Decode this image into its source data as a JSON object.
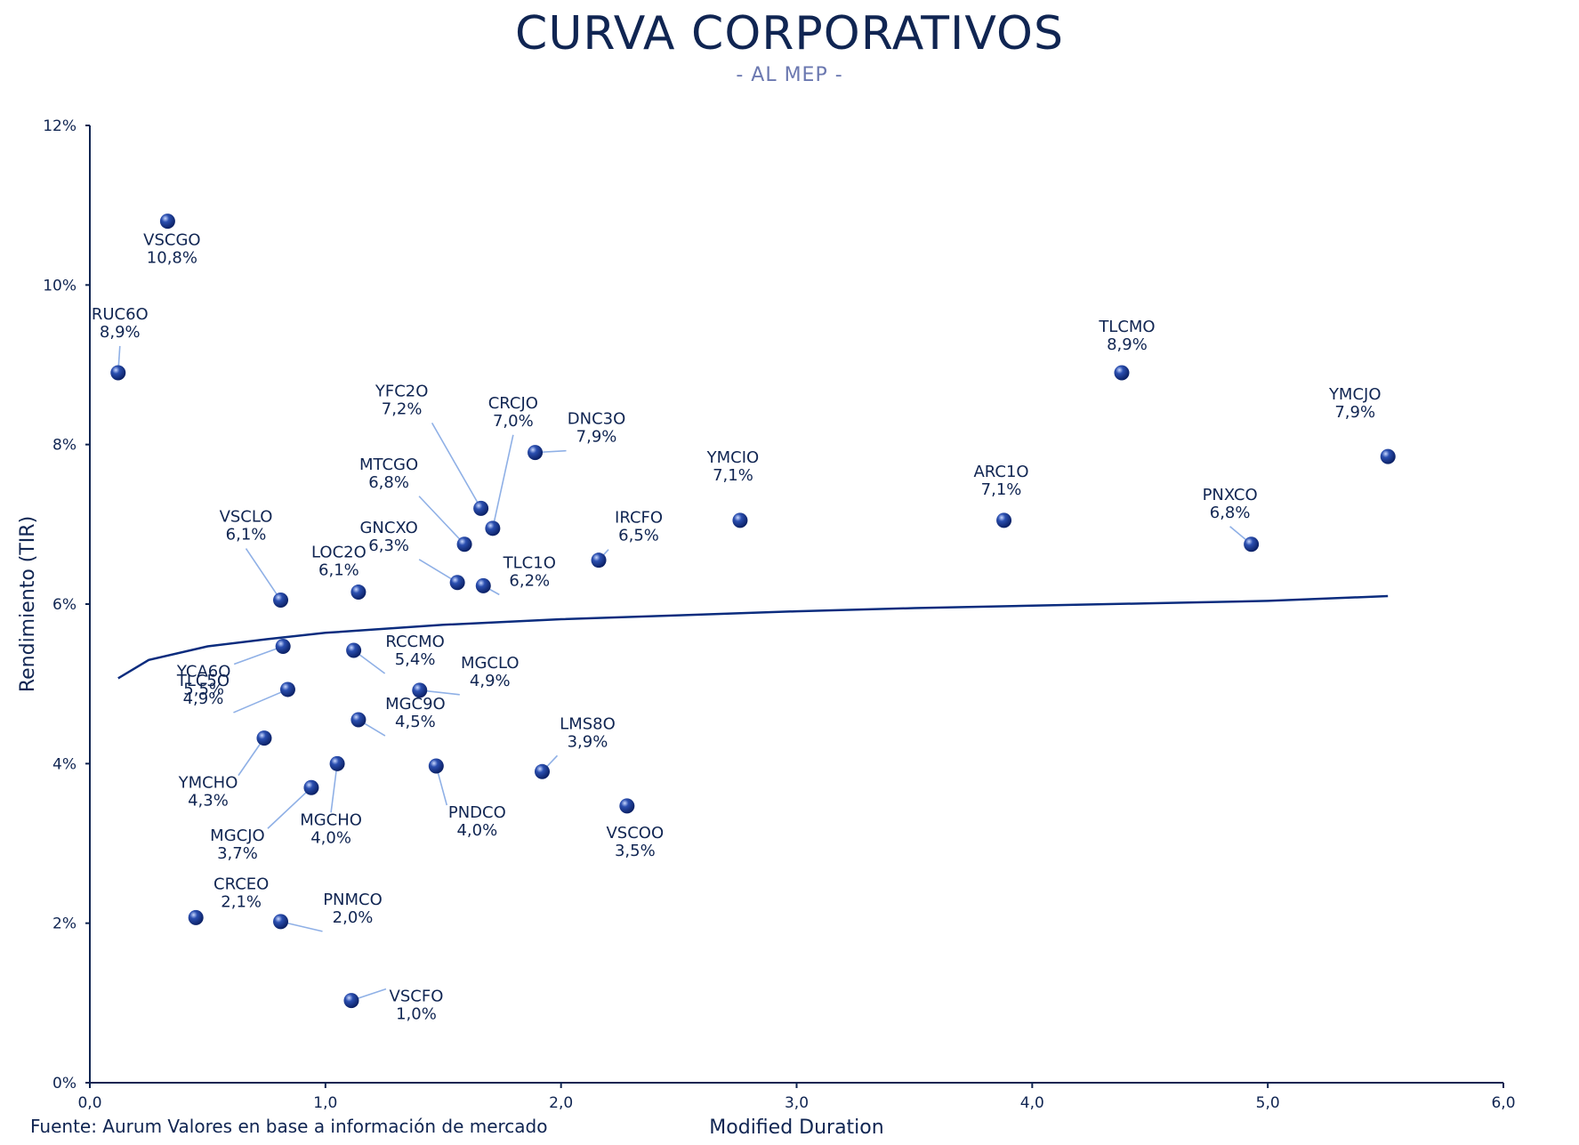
{
  "header": {
    "title": "CURVA CORPORATIVOS",
    "subtitle": "- AL MEP -"
  },
  "footer": {
    "source": "Fuente: Aurum Valores en base a información de mercado"
  },
  "colors": {
    "title": "#102552",
    "subtitle": "#6b78b0",
    "point": "#0b2c7e",
    "curve": "#0b2c7e",
    "leader": "#8fb0e6",
    "axis": "#102552"
  },
  "chart_data": {
    "type": "scatter",
    "title": "CURVA CORPORATIVOS",
    "subtitle": "- AL MEP -",
    "xlabel": "Modified Duration",
    "ylabel": "Rendimiento (TIR)",
    "xlim": [
      0,
      6
    ],
    "ylim": [
      0,
      12
    ],
    "x_ticks": [
      "0,0",
      "1,0",
      "2,0",
      "3,0",
      "4,0",
      "5,0",
      "6,0"
    ],
    "y_ticks": [
      "0%",
      "2%",
      "4%",
      "6%",
      "8%",
      "10%",
      "12%"
    ],
    "grid": false,
    "legend": "none",
    "points": [
      {
        "name": "VSCGO",
        "label": "10,8%",
        "x": 0.33,
        "y": 10.8
      },
      {
        "name": "RUC6O",
        "label": "8,9%",
        "x": 0.12,
        "y": 8.9
      },
      {
        "name": "TLCMO",
        "label": "8,9%",
        "x": 4.38,
        "y": 8.9
      },
      {
        "name": "YMCJO",
        "label": "7,9%",
        "x": 5.51,
        "y": 7.85
      },
      {
        "name": "DNC3O",
        "label": "7,9%",
        "x": 1.89,
        "y": 7.9
      },
      {
        "name": "YFC2O",
        "label": "7,2%",
        "x": 1.66,
        "y": 7.2
      },
      {
        "name": "CRCJO",
        "label": "7,0%",
        "x": 1.71,
        "y": 6.95
      },
      {
        "name": "YMCIO",
        "label": "7,1%",
        "x": 2.76,
        "y": 7.05
      },
      {
        "name": "ARC1O",
        "label": "7,1%",
        "x": 3.88,
        "y": 7.05
      },
      {
        "name": "PNXCO",
        "label": "6,8%",
        "x": 4.93,
        "y": 6.75
      },
      {
        "name": "MTCGO",
        "label": "6,8%",
        "x": 1.59,
        "y": 6.75
      },
      {
        "name": "IRCFO",
        "label": "6,5%",
        "x": 2.16,
        "y": 6.55
      },
      {
        "name": "GNCXO",
        "label": "6,3%",
        "x": 1.56,
        "y": 6.27
      },
      {
        "name": "TLC1O",
        "label": "6,2%",
        "x": 1.67,
        "y": 6.23
      },
      {
        "name": "LOC2O",
        "label": "6,1%",
        "x": 1.14,
        "y": 6.15
      },
      {
        "name": "VSCLO",
        "label": "6,1%",
        "x": 0.81,
        "y": 6.05
      },
      {
        "name": "YCA6O",
        "label": "5,5%",
        "x": 0.82,
        "y": 5.47
      },
      {
        "name": "RCCMO",
        "label": "5,4%",
        "x": 1.12,
        "y": 5.42
      },
      {
        "name": "TLC5O",
        "label": "4,9%",
        "x": 0.84,
        "y": 4.93
      },
      {
        "name": "MGCLO",
        "label": "4,9%",
        "x": 1.4,
        "y": 4.92
      },
      {
        "name": "MGC9O",
        "label": "4,5%",
        "x": 1.14,
        "y": 4.55
      },
      {
        "name": "YMCHO",
        "label": "4,3%",
        "x": 0.74,
        "y": 4.32
      },
      {
        "name": "MGCHO",
        "label": "4,0%",
        "x": 1.05,
        "y": 4.0
      },
      {
        "name": "PNDCO",
        "label": "4,0%",
        "x": 1.47,
        "y": 3.97
      },
      {
        "name": "LMS8O",
        "label": "3,9%",
        "x": 1.92,
        "y": 3.9
      },
      {
        "name": "MGCJO",
        "label": "3,7%",
        "x": 0.94,
        "y": 3.7
      },
      {
        "name": "VSCOO",
        "label": "3,5%",
        "x": 2.28,
        "y": 3.47
      },
      {
        "name": "CRCEO",
        "label": "2,1%",
        "x": 0.45,
        "y": 2.07
      },
      {
        "name": "PNMCO",
        "label": "2,0%",
        "x": 0.81,
        "y": 2.02
      },
      {
        "name": "VSCFO",
        "label": "1,0%",
        "x": 1.11,
        "y": 1.03
      }
    ],
    "trendline": {
      "type": "logarithmic",
      "x": [
        0.12,
        0.25,
        0.5,
        0.75,
        1.0,
        1.5,
        2.0,
        2.5,
        3.0,
        3.5,
        4.0,
        4.5,
        5.0,
        5.51
      ],
      "y": [
        5.07,
        5.3,
        5.47,
        5.56,
        5.64,
        5.74,
        5.81,
        5.86,
        5.91,
        5.95,
        5.98,
        6.01,
        6.04,
        6.1
      ]
    }
  }
}
